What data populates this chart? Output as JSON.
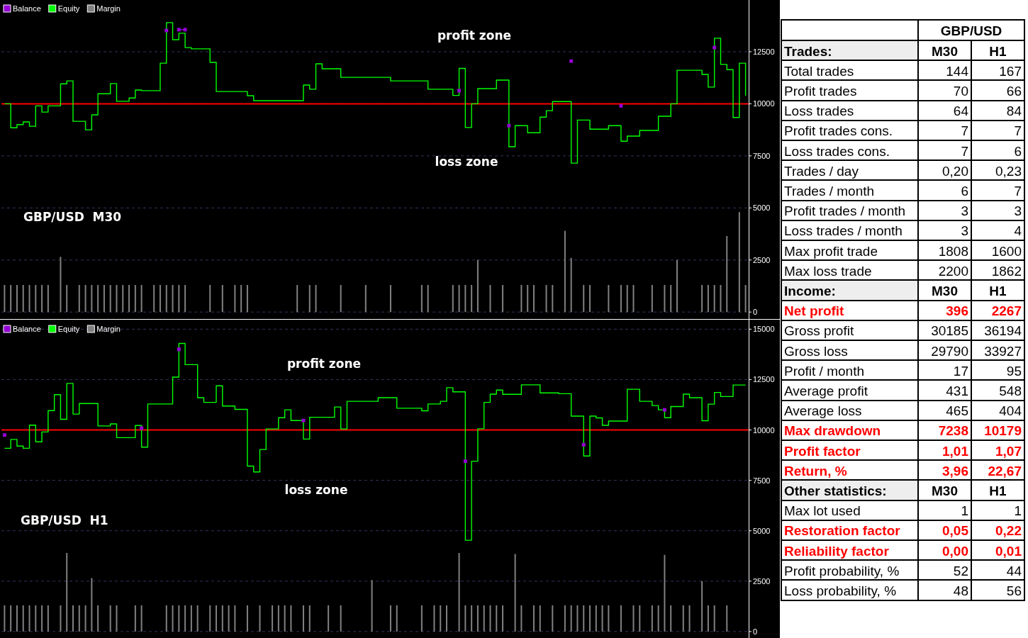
{
  "chart_data": [
    {
      "type": "line",
      "title": "GBP/USD  M30",
      "categories": [
        null,
        null,
        null,
        null,
        null,
        null,
        null,
        null,
        null,
        null,
        null,
        null,
        null,
        null,
        null,
        null,
        null,
        null,
        null,
        null,
        null,
        null,
        null,
        null,
        null,
        null,
        null,
        null,
        null,
        null,
        null,
        null,
        null,
        null,
        null,
        null,
        null,
        null,
        null,
        null,
        null,
        null,
        null,
        null,
        null,
        null,
        null,
        null,
        null,
        null,
        null,
        null,
        null,
        null,
        null,
        null,
        null,
        null,
        null,
        null,
        null,
        null,
        null,
        null,
        null,
        null,
        null,
        null,
        null,
        null,
        null,
        null,
        null,
        null,
        null,
        null,
        null,
        null,
        null,
        null,
        null,
        null,
        null,
        null,
        null,
        null,
        null,
        null,
        null,
        null,
        null,
        null,
        null,
        null,
        null,
        null,
        null,
        null,
        null,
        null,
        null,
        null,
        null,
        null,
        null,
        null,
        null,
        null,
        null,
        null,
        null,
        null,
        null,
        null,
        null,
        null,
        null,
        null,
        null,
        null
      ],
      "series": [
        {
          "name": "Balance",
          "type": "step",
          "marker": "square",
          "color": "#9400d3",
          "values": [
            null,
            null,
            null,
            null,
            null,
            null,
            null,
            null,
            null,
            null,
            null,
            null,
            null,
            null,
            null,
            null,
            null,
            null,
            null,
            null,
            null,
            null,
            null,
            null,
            null,
            null,
            13520,
            null,
            13560,
            13560,
            null,
            null,
            null,
            null,
            null,
            null,
            null,
            null,
            null,
            null,
            null,
            null,
            null,
            null,
            null,
            null,
            null,
            null,
            null,
            null,
            null,
            null,
            null,
            null,
            null,
            null,
            null,
            null,
            null,
            null,
            null,
            null,
            null,
            null,
            null,
            null,
            null,
            null,
            null,
            null,
            null,
            null,
            null,
            10630,
            null,
            null,
            null,
            null,
            null,
            null,
            null,
            8950,
            null,
            null,
            null,
            null,
            null,
            null,
            null,
            null,
            null,
            12050,
            null,
            null,
            null,
            null,
            null,
            null,
            null,
            9900,
            null,
            null,
            null,
            null,
            null,
            null,
            null,
            null,
            null,
            null,
            null,
            null,
            null,
            null,
            12700,
            null,
            null,
            null,
            null,
            null
          ]
        },
        {
          "name": "Equity",
          "type": "step",
          "color": "#00ff00",
          "values": [
            10000,
            8850,
            9000,
            9130,
            8920,
            9900,
            9600,
            9900,
            9900,
            10960,
            11100,
            9160,
            9160,
            8750,
            9470,
            10480,
            10480,
            10970,
            10120,
            10120,
            10280,
            10660,
            10630,
            10630,
            10630,
            11950,
            13900,
            13080,
            13390,
            12700,
            12640,
            12640,
            12640,
            11990,
            10590,
            10590,
            10590,
            10590,
            10590,
            10390,
            10150,
            10150,
            10150,
            10150,
            10150,
            10150,
            10150,
            10150,
            10900,
            10700,
            11920,
            11680,
            11680,
            11680,
            11270,
            11270,
            11270,
            11270,
            11270,
            11270,
            11270,
            11270,
            11100,
            11100,
            11100,
            11100,
            11100,
            11100,
            10700,
            10700,
            10700,
            10700,
            10400,
            11700,
            8860,
            10000,
            10730,
            10730,
            10730,
            11140,
            11140,
            7940,
            8950,
            8950,
            8610,
            8610,
            9360,
            9670,
            10110,
            10110,
            10110,
            7150,
            9220,
            9220,
            8780,
            8780,
            8780,
            8950,
            8950,
            8200,
            8450,
            8450,
            8720,
            8720,
            8720,
            9400,
            9400,
            10000,
            11610,
            11610,
            11610,
            11610,
            11410,
            10800,
            13150,
            11890,
            11640,
            9340,
            11950,
            10390
          ]
        },
        {
          "name": "Margin",
          "type": "bar",
          "color": "#808080",
          "values": [
            1300,
            1300,
            1300,
            1300,
            1300,
            1300,
            1300,
            1300,
            null,
            2650,
            1300,
            null,
            1300,
            1300,
            1300,
            1300,
            1300,
            1300,
            1300,
            1300,
            1300,
            1300,
            1300,
            null,
            1300,
            1300,
            1300,
            1300,
            1300,
            1300,
            null,
            null,
            null,
            1300,
            null,
            1300,
            null,
            1300,
            1300,
            1300,
            null,
            null,
            null,
            null,
            null,
            null,
            null,
            1300,
            null,
            1300,
            1300,
            null,
            null,
            null,
            1300,
            null,
            null,
            null,
            1300,
            null,
            null,
            null,
            1300,
            null,
            null,
            null,
            null,
            1300,
            1300,
            null,
            null,
            null,
            1300,
            1300,
            1300,
            1300,
            2500,
            null,
            1300,
            null,
            1300,
            null,
            null,
            1300,
            1300,
            1300,
            null,
            1300,
            1300,
            null,
            3900,
            2600,
            null,
            1300,
            1300,
            null,
            null,
            1300,
            null,
            1300,
            1300,
            1300,
            null,
            null,
            1300,
            null,
            1300,
            1300,
            2500,
            null,
            null,
            null,
            1300,
            1300,
            1300,
            1300,
            3650,
            null,
            4800,
            1300
          ]
        }
      ],
      "ylim": [
        -300,
        14950
      ],
      "yticks": [
        0,
        2500,
        5000,
        7500,
        10000,
        12500
      ],
      "grid": "y",
      "legend": "top left",
      "tick_labels": "y",
      "ref_lines": [
        {
          "axis": "y",
          "value": 10000,
          "color": "#ff0000"
        }
      ],
      "annotations": [
        "profit zone",
        "loss zone"
      ]
    },
    {
      "type": "line",
      "title": "GBP/USD  H1",
      "categories": [
        null,
        null,
        null,
        null,
        null,
        null,
        null,
        null,
        null,
        null,
        null,
        null,
        null,
        null,
        null,
        null,
        null,
        null,
        null,
        null,
        null,
        null,
        null,
        null,
        null,
        null,
        null,
        null,
        null,
        null,
        null,
        null,
        null,
        null,
        null,
        null,
        null,
        null,
        null,
        null,
        null,
        null,
        null,
        null,
        null,
        null,
        null,
        null,
        null,
        null,
        null,
        null,
        null,
        null,
        null,
        null,
        null,
        null,
        null,
        null,
        null,
        null,
        null,
        null,
        null,
        null,
        null,
        null,
        null,
        null,
        null,
        null,
        null,
        null,
        null,
        null,
        null,
        null,
        null,
        null,
        null,
        null,
        null,
        null,
        null,
        null,
        null,
        null,
        null,
        null,
        null,
        null,
        null,
        null,
        null,
        null,
        null,
        null,
        null,
        null,
        null,
        null,
        null,
        null,
        null,
        null,
        null,
        null,
        null,
        null,
        null,
        null,
        null,
        null,
        null,
        null,
        null,
        null,
        null,
        null
      ],
      "series": [
        {
          "name": "Balance",
          "type": "scatter",
          "marker": "square",
          "color": "#9400d3",
          "values": [
            9750,
            null,
            null,
            null,
            null,
            null,
            null,
            null,
            null,
            null,
            null,
            null,
            null,
            null,
            null,
            null,
            null,
            null,
            null,
            null,
            null,
            null,
            10090,
            null,
            null,
            null,
            null,
            null,
            14000,
            null,
            null,
            null,
            null,
            null,
            null,
            null,
            null,
            null,
            null,
            null,
            null,
            null,
            null,
            null,
            null,
            null,
            null,
            null,
            10470,
            null,
            null,
            null,
            null,
            null,
            null,
            null,
            null,
            null,
            null,
            null,
            null,
            null,
            null,
            null,
            null,
            null,
            null,
            null,
            null,
            null,
            null,
            null,
            null,
            null,
            8450,
            null,
            null,
            null,
            null,
            null,
            null,
            null,
            null,
            null,
            null,
            null,
            null,
            null,
            null,
            null,
            null,
            null,
            null,
            9270,
            null,
            null,
            null,
            null,
            null,
            null,
            null,
            null,
            null,
            null,
            null,
            null,
            11000,
            null,
            null,
            null,
            null,
            null,
            null,
            null,
            null,
            null,
            null,
            null,
            null,
            null
          ]
        },
        {
          "name": "Equity",
          "type": "step",
          "color": "#00ff00",
          "values": [
            9090,
            9530,
            9200,
            9090,
            10240,
            9410,
            9900,
            10960,
            11750,
            10530,
            12310,
            10790,
            11310,
            11310,
            11310,
            10200,
            10200,
            10300,
            9620,
            9620,
            9620,
            10220,
            9150,
            11290,
            11290,
            11290,
            11290,
            12620,
            14290,
            13240,
            13240,
            11600,
            11370,
            11370,
            12190,
            11190,
            11190,
            11020,
            11020,
            8210,
            7920,
            9030,
            10050,
            10050,
            10610,
            11000,
            10470,
            10470,
            9550,
            10630,
            10630,
            10630,
            10630,
            11140,
            10050,
            11420,
            11420,
            11420,
            11420,
            11420,
            11600,
            11600,
            11600,
            11080,
            11080,
            11080,
            11080,
            10950,
            11290,
            11290,
            11420,
            12100,
            11890,
            11890,
            4530,
            8450,
            10060,
            11370,
            11780,
            11980,
            11770,
            11770,
            11770,
            12240,
            12240,
            12240,
            11840,
            11840,
            11840,
            11800,
            11800,
            10690,
            10690,
            8710,
            10690,
            10600,
            10230,
            10440,
            10440,
            10440,
            12020,
            12020,
            11420,
            11420,
            11210,
            11000,
            10610,
            11160,
            11160,
            11780,
            11600,
            11600,
            10460,
            11280,
            11860,
            11660,
            11660,
            12230,
            12230,
            12230
          ]
        },
        {
          "name": "Margin",
          "type": "bar",
          "color": "#808080",
          "values": [
            1300,
            1300,
            1300,
            1300,
            1300,
            1300,
            1300,
            1300,
            null,
            1300,
            3900,
            1300,
            1300,
            1300,
            2650,
            1300,
            null,
            1300,
            1300,
            null,
            null,
            1300,
            1300,
            null,
            null,
            null,
            1300,
            1300,
            1300,
            1300,
            1300,
            1300,
            null,
            1300,
            1300,
            1300,
            1300,
            1300,
            null,
            1300,
            null,
            1300,
            null,
            1300,
            1300,
            1300,
            1300,
            null,
            1300,
            1300,
            null,
            null,
            1300,
            null,
            1300,
            null,
            null,
            null,
            null,
            2550,
            null,
            null,
            1300,
            1300,
            null,
            null,
            null,
            1300,
            null,
            1300,
            1300,
            1300,
            null,
            3900,
            1300,
            1300,
            1300,
            1300,
            1300,
            1300,
            1300,
            null,
            3850,
            1300,
            null,
            1300,
            1300,
            null,
            1300,
            null,
            1300,
            1300,
            1300,
            1300,
            1300,
            1300,
            1300,
            1300,
            null,
            1300,
            null,
            1300,
            1300,
            null,
            1300,
            1300,
            3800,
            1300,
            null,
            1300,
            1300,
            null,
            2500,
            1300,
            1300,
            null,
            1300,
            null,
            null,
            null
          ]
        }
      ],
      "ylim": [
        -250,
        15400
      ],
      "yticks": [
        0,
        2500,
        5000,
        7500,
        10000,
        12500,
        15000
      ],
      "grid": "y",
      "legend": "top left",
      "tick_labels": "y",
      "ref_lines": [
        {
          "axis": "y",
          "value": 10000,
          "color": "#ff0000"
        }
      ],
      "annotations": [
        "profit zone",
        "loss zone"
      ]
    },
    {
      "type": "other",
      "title": "GBP/USD",
      "categories": [
        "M30",
        "H1"
      ],
      "y_categories": [
        "Trades:",
        "Total trades",
        "Profit trades",
        "Loss trades",
        "Profit trades cons.",
        "Loss trades cons.",
        "Trades / day",
        "Trades / month",
        "Profit trades / month",
        "Loss trades / month",
        "Max profit trade",
        "Max loss trade",
        "Income:",
        "Net profit",
        "Gross profit",
        "Gross loss",
        "Profit / month",
        "Average profit",
        "Average loss",
        "Max drawdown",
        "Profit factor",
        "Return, %",
        "Other statistics:",
        "Max lot used",
        "Restoration factor",
        "Reliability factor",
        "Profit probability, %",
        "Loss probability, %"
      ],
      "cell_labels": [
        null,
        [
          "144",
          "167"
        ],
        [
          "70",
          "66"
        ],
        [
          "64",
          "84"
        ],
        [
          "7",
          "7"
        ],
        [
          "7",
          "6"
        ],
        [
          "0,20",
          "0,23"
        ],
        [
          "6",
          "7"
        ],
        [
          "3",
          "3"
        ],
        [
          "3",
          "4"
        ],
        [
          "1808",
          "1600"
        ],
        [
          "2200",
          "1862"
        ],
        null,
        [
          "396",
          "2267"
        ],
        [
          "30185",
          "36194"
        ],
        [
          "29790",
          "33927"
        ],
        [
          "17",
          "95"
        ],
        [
          "431",
          "548"
        ],
        [
          "465",
          "404"
        ],
        [
          "7238",
          "10179"
        ],
        [
          "1,01",
          "1,07"
        ],
        [
          "3,96",
          "22,67"
        ],
        null,
        [
          "1",
          "1"
        ],
        [
          "0,05",
          "0,22"
        ],
        [
          "0,00",
          "0,01"
        ],
        [
          "52",
          "44"
        ],
        [
          "48",
          "56"
        ]
      ],
      "colors": [
        "#000000",
        "#000000",
        "#000000",
        "#000000",
        "#000000",
        "#000000",
        "#000000",
        "#000000",
        "#000000",
        "#000000",
        "#000000",
        "#000000",
        "#000000",
        "#ff0000",
        "#000000",
        "#000000",
        "#000000",
        "#000000",
        "#000000",
        "#ff0000",
        "#ff0000",
        "#ff0000",
        "#000000",
        "#000000",
        "#ff0000",
        "#ff0000",
        "#000000",
        "#000000"
      ]
    }
  ]
}
